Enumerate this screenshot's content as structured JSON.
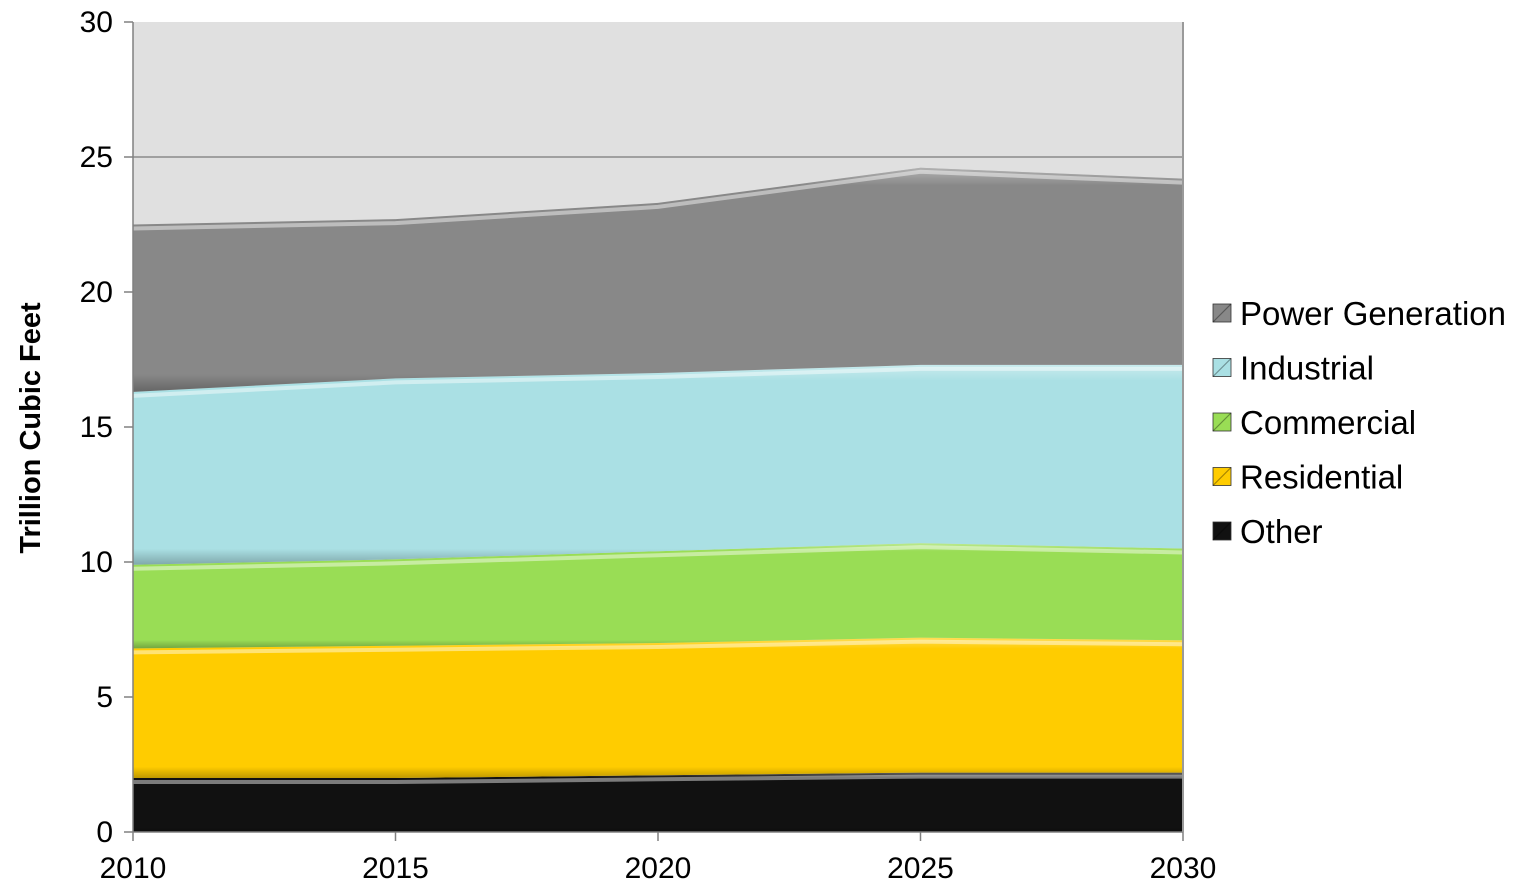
{
  "chart_data": {
    "type": "area",
    "stacked": true,
    "title": "",
    "xlabel": "",
    "ylabel": "Trillion Cubic Feet",
    "x": [
      2010,
      2015,
      2020,
      2025,
      2030
    ],
    "x_ticks": [
      "2010",
      "2015",
      "2020",
      "2025",
      "2030"
    ],
    "y_ticks": [
      "0",
      "5",
      "10",
      "15",
      "20",
      "25",
      "30"
    ],
    "xlim": [
      2010,
      2030
    ],
    "ylim": [
      0,
      30
    ],
    "grid": "horizontal at 25",
    "plot_background": "#e0e0e0",
    "legend_position": "right",
    "series": [
      {
        "name": "Other",
        "color": "#111111",
        "values": [
          2.0,
          2.0,
          2.1,
          2.2,
          2.2
        ]
      },
      {
        "name": "Residential",
        "color": "#ffcc00",
        "values": [
          4.8,
          4.9,
          4.9,
          5.0,
          4.9
        ]
      },
      {
        "name": "Commercial",
        "color": "#99dd55",
        "values": [
          3.1,
          3.2,
          3.4,
          3.5,
          3.4
        ]
      },
      {
        "name": "Industrial",
        "color": "#aae0e4",
        "values": [
          6.4,
          6.7,
          6.6,
          6.6,
          6.8
        ]
      },
      {
        "name": "Power Generation",
        "color": "#888888",
        "values": [
          6.2,
          5.9,
          6.3,
          7.3,
          6.9
        ]
      }
    ],
    "legend": [
      "Power Generation",
      "Industrial",
      "Commercial",
      "Residential",
      "Other"
    ]
  }
}
